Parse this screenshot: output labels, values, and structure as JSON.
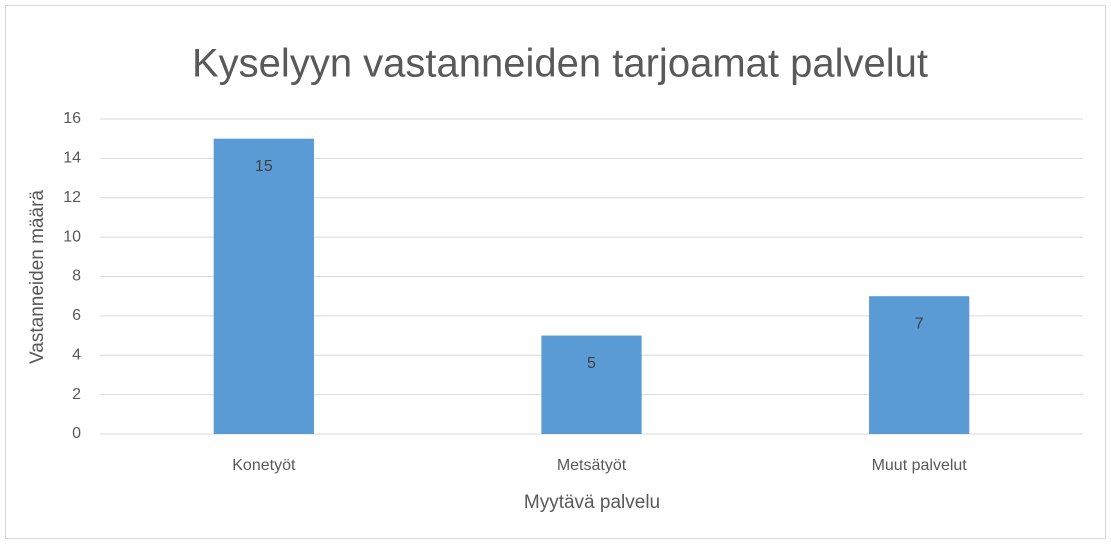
{
  "chart_data": {
    "type": "bar",
    "title": "Kyselyyn vastanneiden tarjoamat palvelut",
    "x_label": "Myytävä palvelu",
    "y_label": "Vastanneiden määrä",
    "categories": [
      "Konetyöt",
      "Metsätyöt",
      "Muut palvelut"
    ],
    "values": [
      15,
      5,
      7
    ],
    "color": "#5b9bd5",
    "ylim": [
      0,
      16
    ],
    "yticks": [
      0,
      2,
      4,
      6,
      8,
      10,
      12,
      14,
      16
    ],
    "grid": true,
    "data_labels": true
  }
}
